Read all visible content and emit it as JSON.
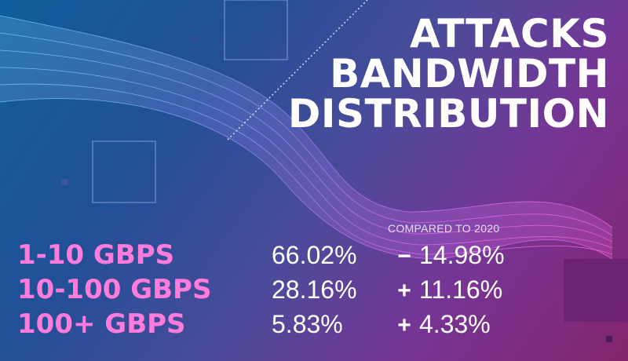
{
  "title_lines": [
    "ATTACKS",
    "BANDWIDTH",
    "DISTRIBUTION"
  ],
  "compared_label": "COMPARED TO 2020",
  "colors": {
    "range_label": "#ff7cdc",
    "text": "#ffffff",
    "background_start": "#0f5e9b",
    "background_end": "#84246c"
  },
  "rows": [
    {
      "range": "1-10 GBPS",
      "share": "66.02%",
      "change_sign": "−",
      "change": "14.98%"
    },
    {
      "range": "10-100 GBPS",
      "share": "28.16%",
      "change_sign": "+",
      "change": "11.16%"
    },
    {
      "range": "100+ GBPS",
      "share": "5.83%",
      "change_sign": "+",
      "change": "4.33%"
    }
  ],
  "chart_data": {
    "type": "table",
    "title": "ATTACKS BANDWIDTH DISTRIBUTION",
    "columns": [
      "",
      "",
      "COMPARED TO 2020"
    ],
    "categories": [
      "1-10 GBPS",
      "10-100 GBPS",
      "100+ GBPS"
    ],
    "series": [
      {
        "values": [
          66.02,
          28.16,
          5.83
        ]
      },
      {
        "values": [
          -14.98,
          11.16,
          4.33
        ]
      }
    ]
  }
}
